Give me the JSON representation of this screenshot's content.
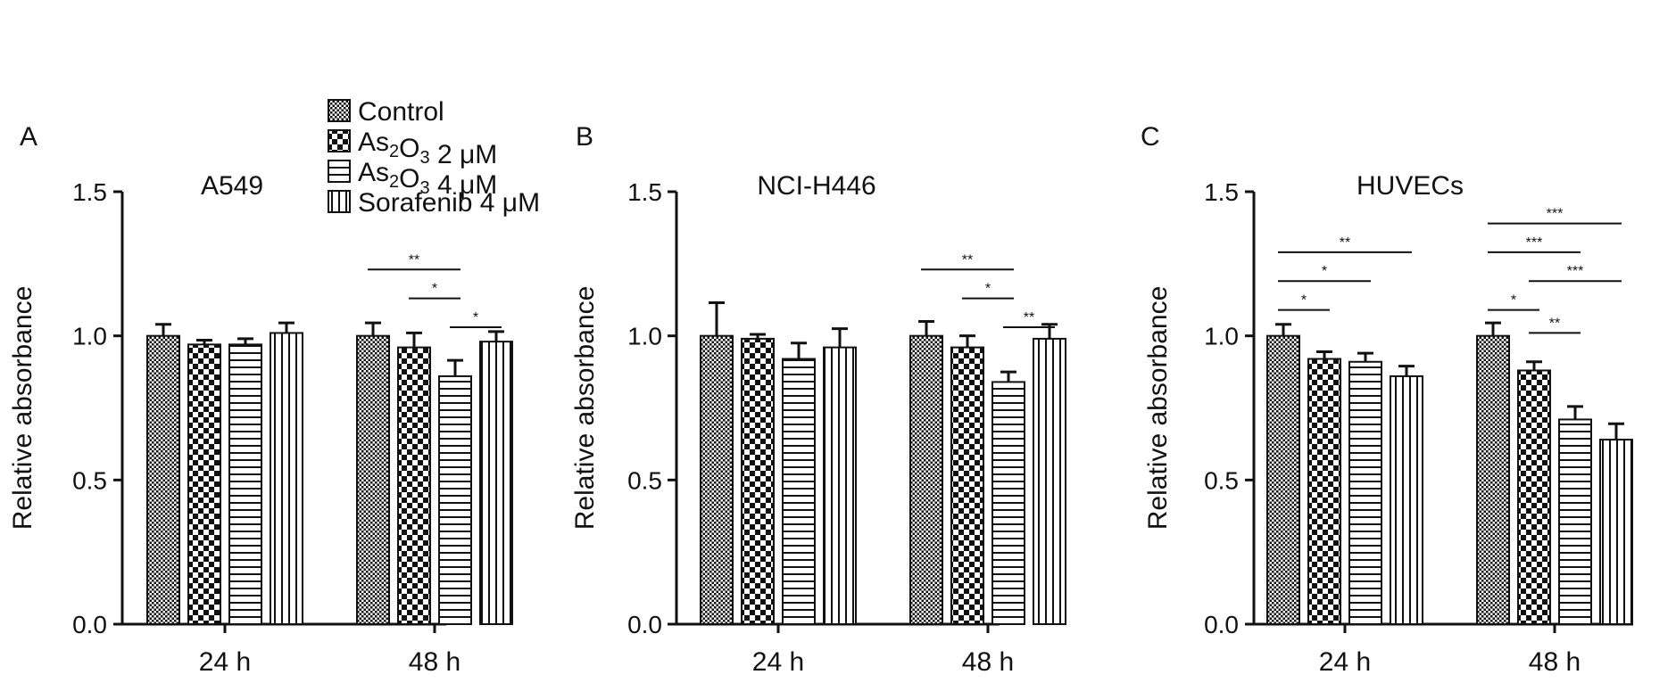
{
  "figure": {
    "legend": {
      "entries": [
        {
          "key": "control",
          "pattern": "dense-check",
          "parts": [
            {
              "t": "Control"
            }
          ]
        },
        {
          "key": "as2o3_2",
          "pattern": "checker",
          "parts": [
            {
              "t": "As"
            },
            {
              "t": "2",
              "sub": true
            },
            {
              "t": "O"
            },
            {
              "t": "3",
              "sub": true
            },
            {
              "t": " 2 μM"
            }
          ]
        },
        {
          "key": "as2o3_4",
          "pattern": "hlines",
          "parts": [
            {
              "t": "As"
            },
            {
              "t": "2",
              "sub": true
            },
            {
              "t": "O"
            },
            {
              "t": "3",
              "sub": true
            },
            {
              "t": " 4 μM"
            }
          ]
        },
        {
          "key": "sorafenib_4",
          "pattern": "vlines",
          "parts": [
            {
              "t": "Sorafenib 4 μM"
            }
          ]
        }
      ]
    }
  },
  "chart_data": [
    {
      "panel_label": "A",
      "type": "bar",
      "title": "A549",
      "ylabel": "Relative absorbance",
      "xlabel": "",
      "categories": [
        "24 h",
        "48 h"
      ],
      "ylim": [
        0,
        1.5
      ],
      "yticks": [
        "0.0",
        "0.5",
        "1.0",
        "1.5"
      ],
      "ytick_values": [
        0,
        0.5,
        1.0,
        1.5
      ],
      "series": [
        {
          "key": "control",
          "values": [
            1.0,
            1.0
          ],
          "errors": [
            0.04,
            0.045
          ]
        },
        {
          "key": "as2o3_2",
          "values": [
            0.97,
            0.96
          ],
          "errors": [
            0.015,
            0.05
          ]
        },
        {
          "key": "as2o3_4",
          "values": [
            0.97,
            0.86
          ],
          "errors": [
            0.02,
            0.055
          ]
        },
        {
          "key": "sorafenib_4",
          "values": [
            1.01,
            0.98
          ],
          "errors": [
            0.035,
            0.035
          ]
        }
      ],
      "significance": [
        {
          "category": 1,
          "from": 0,
          "to": 2,
          "y": 1.23,
          "label": "**"
        },
        {
          "category": 1,
          "from": 1,
          "to": 2,
          "y": 1.13,
          "label": "*"
        },
        {
          "category": 1,
          "from": 2,
          "to": 3,
          "y": 1.03,
          "label": "*"
        }
      ]
    },
    {
      "panel_label": "B",
      "type": "bar",
      "title": "NCI-H446",
      "ylabel": "Relative absorbance",
      "xlabel": "",
      "categories": [
        "24 h",
        "48 h"
      ],
      "ylim": [
        0,
        1.5
      ],
      "yticks": [
        "0.0",
        "0.5",
        "1.0",
        "1.5"
      ],
      "ytick_values": [
        0,
        0.5,
        1.0,
        1.5
      ],
      "series": [
        {
          "key": "control",
          "values": [
            1.0,
            1.0
          ],
          "errors": [
            0.115,
            0.05
          ]
        },
        {
          "key": "as2o3_2",
          "values": [
            0.99,
            0.96
          ],
          "errors": [
            0.015,
            0.04
          ]
        },
        {
          "key": "as2o3_4",
          "values": [
            0.92,
            0.84
          ],
          "errors": [
            0.055,
            0.035
          ]
        },
        {
          "key": "sorafenib_4",
          "values": [
            0.96,
            0.99
          ],
          "errors": [
            0.065,
            0.05
          ]
        }
      ],
      "significance": [
        {
          "category": 1,
          "from": 0,
          "to": 2,
          "y": 1.23,
          "label": "**"
        },
        {
          "category": 1,
          "from": 1,
          "to": 2,
          "y": 1.13,
          "label": "*"
        },
        {
          "category": 1,
          "from": 2,
          "to": 3,
          "y": 1.03,
          "label": "**"
        }
      ]
    },
    {
      "panel_label": "C",
      "type": "bar",
      "title": "HUVECs",
      "ylabel": "Relative absorbance",
      "xlabel": "",
      "categories": [
        "24 h",
        "48 h"
      ],
      "ylim": [
        0,
        1.5
      ],
      "yticks": [
        "0.0",
        "0.5",
        "1.0",
        "1.5"
      ],
      "ytick_values": [
        0,
        0.5,
        1.0,
        1.5
      ],
      "series": [
        {
          "key": "control",
          "values": [
            1.0,
            1.0
          ],
          "errors": [
            0.04,
            0.045
          ]
        },
        {
          "key": "as2o3_2",
          "values": [
            0.92,
            0.88
          ],
          "errors": [
            0.025,
            0.03
          ]
        },
        {
          "key": "as2o3_4",
          "values": [
            0.91,
            0.71
          ],
          "errors": [
            0.03,
            0.045
          ]
        },
        {
          "key": "sorafenib_4",
          "values": [
            0.86,
            0.64
          ],
          "errors": [
            0.035,
            0.055
          ]
        }
      ],
      "significance": [
        {
          "category": 0,
          "from": 0,
          "to": 3,
          "y": 1.29,
          "label": "**"
        },
        {
          "category": 0,
          "from": 0,
          "to": 2,
          "y": 1.19,
          "label": "*"
        },
        {
          "category": 0,
          "from": 0,
          "to": 1,
          "y": 1.09,
          "label": "*"
        },
        {
          "category": 1,
          "from": 0,
          "to": 3,
          "y": 1.39,
          "label": "***"
        },
        {
          "category": 1,
          "from": 0,
          "to": 2,
          "y": 1.29,
          "label": "***"
        },
        {
          "category": 1,
          "from": 1,
          "to": 3,
          "y": 1.19,
          "label": "***"
        },
        {
          "category": 1,
          "from": 0,
          "to": 1,
          "y": 1.09,
          "label": "*"
        },
        {
          "category": 1,
          "from": 1,
          "to": 2,
          "y": 1.01,
          "label": "**"
        }
      ]
    }
  ]
}
